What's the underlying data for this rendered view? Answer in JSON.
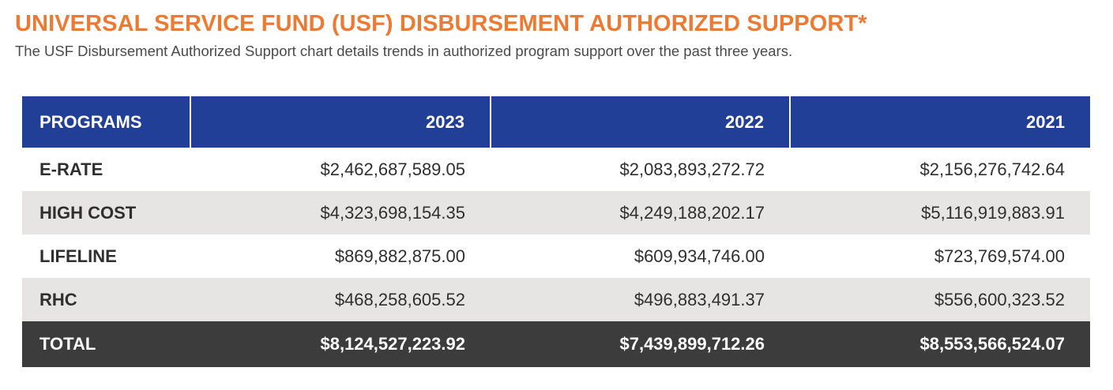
{
  "title": "UNIVERSAL SERVICE FUND (USF) DISBURSEMENT AUTHORIZED SUPPORT*",
  "subtitle": "The USF Disbursement Authorized Support chart details trends in authorized program support over the past three years.",
  "colors": {
    "title": "#ec7a32",
    "header_bg": "#223f98",
    "shade_row": "#e6e5e4",
    "total_bg": "#3c3c3c"
  },
  "table": {
    "headers": [
      "PROGRAMS",
      "2023",
      "2022",
      "2021"
    ],
    "rows": [
      {
        "program": "E-RATE",
        "values": [
          "$2,462,687,589.05",
          "$2,083,893,272.72",
          "$2,156,276,742.64"
        ]
      },
      {
        "program": "HIGH COST",
        "values": [
          "$4,323,698,154.35",
          "$4,249,188,202.17",
          "$5,116,919,883.91"
        ]
      },
      {
        "program": "LIFELINE",
        "values": [
          "$869,882,875.00",
          "$609,934,746.00",
          "$723,769,574.00"
        ]
      },
      {
        "program": "RHC",
        "values": [
          "$468,258,605.52",
          "$496,883,491.37",
          "$556,600,323.52"
        ]
      }
    ],
    "total": {
      "label": "TOTAL",
      "values": [
        "$8,124,527,223.92",
        "$7,439,899,712.26",
        "$8,553,566,524.07"
      ]
    }
  }
}
